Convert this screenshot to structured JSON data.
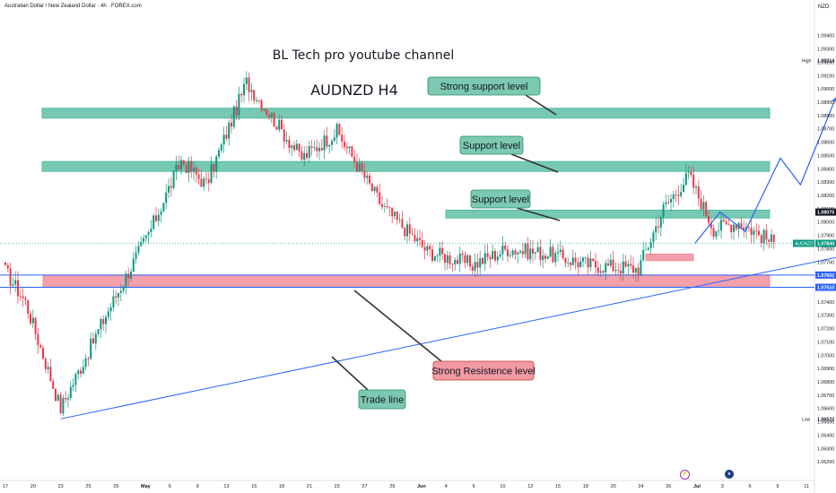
{
  "header": {
    "symbol_title": "Australian Dollar / New Zealand Dollar · 4h · FOREX.com",
    "currency": "NZD"
  },
  "chart_data": {
    "type": "candlestick",
    "title": "BL Tech pro youtube channel",
    "subtitle": "AUDNZD H4",
    "grid": false,
    "ylim": [
      1.061,
      1.096
    ],
    "y_ticks": [
      1.062,
      1.063,
      1.064,
      1.065,
      1.066,
      1.067,
      1.068,
      1.069,
      1.07,
      1.071,
      1.072,
      1.073,
      1.074,
      1.075,
      1.076,
      1.077,
      1.078,
      1.079,
      1.08,
      1.081,
      1.082,
      1.083,
      1.084,
      1.085,
      1.086,
      1.087,
      1.088,
      1.089,
      1.09,
      1.091,
      1.092,
      1.093,
      1.094
    ],
    "x_ticks": [
      "17",
      "20",
      "23",
      "25",
      "29",
      "May",
      "6",
      "9",
      "13",
      "15",
      "18",
      "21",
      "23",
      "27",
      "29",
      "Jun",
      "4",
      "6",
      "10",
      "12",
      "15",
      "18",
      "20",
      "24",
      "26",
      "Jul",
      "3",
      "6",
      "9",
      "11"
    ],
    "x_tick_emphasis": [
      "May",
      "Jun",
      "Jul"
    ],
    "price_labels": [
      {
        "label": "High",
        "value": "1.09214",
        "type": "high"
      },
      {
        "label": "",
        "value": "1.08075",
        "type": "dark"
      },
      {
        "label": "AUDNZD",
        "value": "1.07840",
        "type": "current"
      },
      {
        "label": "",
        "value": "1.07602",
        "type": "blue"
      },
      {
        "label": "",
        "value": "1.07510",
        "type": "blue"
      },
      {
        "label": "Low",
        "value": "1.06522",
        "type": "low"
      }
    ],
    "candles_summary": {
      "start": 1.0763,
      "high": 1.09214,
      "low": 1.06522,
      "last": 1.0784,
      "anchors": [
        [
          0,
          1.0763
        ],
        [
          8,
          1.074
        ],
        [
          22,
          1.066
        ],
        [
          40,
          1.073
        ],
        [
          58,
          1.0795
        ],
        [
          70,
          1.0846
        ],
        [
          80,
          1.0828
        ],
        [
          96,
          1.0905
        ],
        [
          118,
          1.0848
        ],
        [
          132,
          1.0868
        ],
        [
          150,
          1.0812
        ],
        [
          168,
          1.0778
        ],
        [
          186,
          1.0768
        ],
        [
          200,
          1.078
        ],
        [
          216,
          1.0776
        ],
        [
          232,
          1.0768
        ],
        [
          252,
          1.0765
        ],
        [
          262,
          1.081
        ],
        [
          272,
          1.0835
        ],
        [
          282,
          1.0795
        ],
        [
          292,
          1.08
        ],
        [
          306,
          1.0784
        ]
      ]
    },
    "zones": [
      {
        "name": "strong-support-zone",
        "from": 1.0878,
        "to": 1.08855,
        "color": "#48b79a"
      },
      {
        "name": "support-zone-1",
        "from": 1.0838,
        "to": 1.08455,
        "color": "#48b79a"
      },
      {
        "name": "support-zone-2",
        "from": 1.0803,
        "to": 1.0809,
        "color": "#48b79a"
      },
      {
        "name": "strong-resistance-zone",
        "from": 1.0751,
        "to": 1.07602,
        "color": "#f08090"
      }
    ],
    "trend_line": {
      "from": [
        22,
        1.06522
      ],
      "to": [
        371,
        1.0792
      ]
    },
    "projection_path": [
      [
        306,
        1.0784
      ],
      [
        316,
        1.08075
      ],
      [
        326,
        1.0793
      ],
      [
        340,
        1.0848
      ],
      [
        348,
        1.0828
      ],
      [
        362,
        1.0893
      ]
    ],
    "callouts": [
      {
        "name": "strong-support-level-callout",
        "text": "Strong support level",
        "style": "green"
      },
      {
        "name": "support-level-callout-1",
        "text": "Support level",
        "style": "green"
      },
      {
        "name": "support-level-callout-2",
        "text": "Support level",
        "style": "green"
      },
      {
        "name": "strong-resistance-level-callout",
        "text": "Strong Resistence level",
        "style": "red"
      },
      {
        "name": "trade-line-callout",
        "text": "Trade line",
        "style": "green"
      }
    ],
    "colors": {
      "up": "#089981",
      "down": "#f23645",
      "axis_text": "#131722",
      "trend": "#2962ff",
      "zone_green": "#48b79a",
      "zone_red": "#f08090",
      "current": "#089981",
      "dark_label": "#131722",
      "blue_label": "#2962ff"
    }
  }
}
